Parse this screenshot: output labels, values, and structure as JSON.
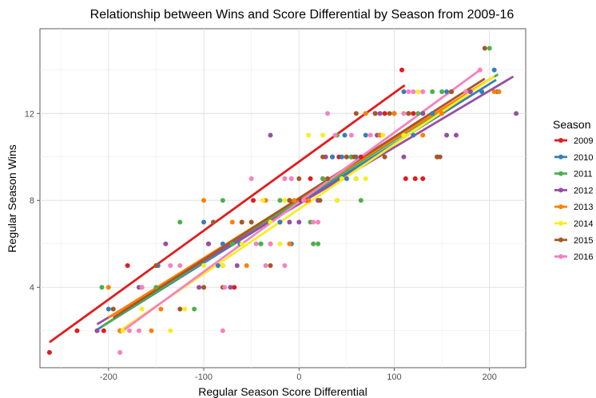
{
  "chart_data": {
    "type": "scatter",
    "title": "Relationship between Wins and Score Differential by Season from 2009-16",
    "xlabel": "Regular Season Score Differential",
    "ylabel": "Regular Season Wins",
    "xlim": [
      -272,
      238
    ],
    "ylim": [
      0.3,
      15.9
    ],
    "xticks": [
      -200,
      -100,
      0,
      100,
      200
    ],
    "xtick_labels": [
      "-200",
      "-100",
      "0",
      "100",
      "200"
    ],
    "yticks": [
      4,
      8,
      12
    ],
    "ytick_labels": [
      "4",
      "8",
      "12"
    ],
    "grid": true,
    "legend_title": "Season",
    "legend_position": "right",
    "series": [
      {
        "name": "2009",
        "color": "#E41A1C",
        "points": [
          [
            -262,
            1
          ],
          [
            -233,
            2
          ],
          [
            -205,
            2
          ],
          [
            -180,
            5
          ],
          [
            -165,
            4
          ],
          [
            -150,
            5
          ],
          [
            -95,
            6
          ],
          [
            -68,
            4
          ],
          [
            -48,
            8
          ],
          [
            -20,
            7
          ],
          [
            -10,
            8
          ],
          [
            2,
            8
          ],
          [
            8,
            8
          ],
          [
            12,
            9
          ],
          [
            25,
            9
          ],
          [
            35,
            10
          ],
          [
            42,
            10
          ],
          [
            55,
            10
          ],
          [
            65,
            10
          ],
          [
            85,
            11
          ],
          [
            90,
            12
          ],
          [
            100,
            12
          ],
          [
            108,
            14
          ],
          [
            112,
            9
          ],
          [
            120,
            12
          ],
          [
            122,
            9
          ],
          [
            130,
            9
          ],
          [
            145,
            10
          ],
          [
            160,
            13
          ]
        ],
        "fit": [
          [
            -262,
            1.47
          ],
          [
            111,
            13.3
          ]
        ]
      },
      {
        "name": "2010",
        "color": "#377EB8",
        "points": [
          [
            -212,
            2
          ],
          [
            -200,
            3
          ],
          [
            -148,
            5
          ],
          [
            -100,
            7
          ],
          [
            -85,
            5
          ],
          [
            -80,
            6
          ],
          [
            -62,
            6
          ],
          [
            -40,
            6
          ],
          [
            -20,
            7
          ],
          [
            -8,
            6
          ],
          [
            4,
            8
          ],
          [
            20,
            8
          ],
          [
            35,
            10
          ],
          [
            45,
            10
          ],
          [
            48,
            11
          ],
          [
            50,
            9
          ],
          [
            55,
            10
          ],
          [
            60,
            10
          ],
          [
            70,
            11
          ],
          [
            80,
            12
          ],
          [
            100,
            12
          ],
          [
            110,
            13
          ],
          [
            120,
            11
          ],
          [
            140,
            12
          ],
          [
            155,
            13
          ],
          [
            192,
            13
          ],
          [
            205,
            14
          ],
          [
            208,
            13
          ]
        ],
        "fit": [
          [
            -212,
            2.05
          ],
          [
            207,
            13.55
          ]
        ]
      },
      {
        "name": "2011",
        "color": "#4DAF4A",
        "points": [
          [
            -207,
            4
          ],
          [
            -150,
            4
          ],
          [
            -125,
            7
          ],
          [
            -110,
            3
          ],
          [
            -80,
            8
          ],
          [
            -70,
            6
          ],
          [
            -60,
            7
          ],
          [
            -40,
            6
          ],
          [
            -20,
            8
          ],
          [
            -15,
            9
          ],
          [
            -8,
            9
          ],
          [
            12,
            7
          ],
          [
            15,
            6
          ],
          [
            20,
            6
          ],
          [
            25,
            9
          ],
          [
            40,
            11
          ],
          [
            55,
            10
          ],
          [
            65,
            8
          ],
          [
            80,
            12
          ],
          [
            100,
            12
          ],
          [
            115,
            12
          ],
          [
            125,
            12
          ],
          [
            130,
            12
          ],
          [
            140,
            13
          ],
          [
            150,
            13
          ],
          [
            200,
            15
          ]
        ],
        "fit": [
          [
            -207,
            2.2
          ],
          [
            209,
            13.8
          ]
        ]
      },
      {
        "name": "2012",
        "color": "#984EA3",
        "points": [
          [
            -212,
            2
          ],
          [
            -188,
            2
          ],
          [
            -168,
            4
          ],
          [
            -140,
            6
          ],
          [
            -105,
            4
          ],
          [
            -95,
            6
          ],
          [
            -80,
            5
          ],
          [
            -72,
            4
          ],
          [
            -65,
            5
          ],
          [
            -30,
            11
          ],
          [
            -10,
            7
          ],
          [
            0,
            7
          ],
          [
            20,
            8
          ],
          [
            28,
            10
          ],
          [
            45,
            9
          ],
          [
            60,
            9
          ],
          [
            82,
            11
          ],
          [
            85,
            12
          ],
          [
            110,
            10
          ],
          [
            130,
            12
          ],
          [
            155,
            11
          ],
          [
            165,
            11
          ],
          [
            180,
            13
          ],
          [
            228,
            12
          ]
        ],
        "fit": [
          [
            -212,
            2.3
          ],
          [
            225,
            13.7
          ]
        ]
      },
      {
        "name": "2013",
        "color": "#FF7F00",
        "points": [
          [
            -200,
            4
          ],
          [
            -188,
            2
          ],
          [
            -155,
            2
          ],
          [
            -145,
            3
          ],
          [
            -100,
            8
          ],
          [
            -100,
            4
          ],
          [
            -70,
            7
          ],
          [
            -55,
            5
          ],
          [
            -35,
            8
          ],
          [
            -30,
            6
          ],
          [
            -10,
            6
          ],
          [
            -5,
            8
          ],
          [
            10,
            8
          ],
          [
            40,
            8
          ],
          [
            50,
            10
          ],
          [
            70,
            12
          ],
          [
            85,
            11
          ],
          [
            100,
            12
          ],
          [
            110,
            11
          ],
          [
            130,
            11
          ],
          [
            150,
            12
          ],
          [
            205,
            13
          ],
          [
            210,
            13
          ]
        ],
        "fit": [
          [
            -200,
            2.6
          ],
          [
            205,
            13.7
          ]
        ]
      },
      {
        "name": "2014",
        "color": "#F7EE20",
        "points": [
          [
            -185,
            2
          ],
          [
            -165,
            3
          ],
          [
            -135,
            2
          ],
          [
            -120,
            3
          ],
          [
            -100,
            5
          ],
          [
            -80,
            5
          ],
          [
            -60,
            6
          ],
          [
            -38,
            8
          ],
          [
            -30,
            7
          ],
          [
            -20,
            6
          ],
          [
            -15,
            8
          ],
          [
            5,
            8
          ],
          [
            10,
            11
          ],
          [
            25,
            11
          ],
          [
            40,
            8
          ],
          [
            45,
            9
          ],
          [
            60,
            9
          ],
          [
            70,
            9
          ],
          [
            88,
            11
          ],
          [
            110,
            11
          ],
          [
            125,
            13
          ]
        ],
        "fit": [
          [
            -188,
            2.0
          ],
          [
            205,
            13.7
          ]
        ]
      },
      {
        "name": "2015",
        "color": "#A65628",
        "points": [
          [
            -195,
            3
          ],
          [
            -150,
            5
          ],
          [
            -125,
            3
          ],
          [
            -100,
            4
          ],
          [
            -90,
            7
          ],
          [
            -80,
            4
          ],
          [
            -60,
            7
          ],
          [
            -50,
            7
          ],
          [
            -30,
            5
          ],
          [
            -10,
            8
          ],
          [
            0,
            9
          ],
          [
            22,
            8
          ],
          [
            25,
            10
          ],
          [
            30,
            9
          ],
          [
            50,
            10
          ],
          [
            58,
            10
          ],
          [
            60,
            12
          ],
          [
            80,
            12
          ],
          [
            90,
            10
          ],
          [
            95,
            12
          ],
          [
            115,
            12
          ],
          [
            145,
            10
          ],
          [
            148,
            10
          ],
          [
            160,
            13
          ],
          [
            195,
            15
          ]
        ],
        "fit": [
          [
            -195,
            2.6
          ],
          [
            195,
            13.6
          ]
        ]
      },
      {
        "name": "2016",
        "color": "#F781BF",
        "points": [
          [
            -188,
            1
          ],
          [
            -178,
            2
          ],
          [
            -168,
            2
          ],
          [
            -165,
            4
          ],
          [
            -135,
            5
          ],
          [
            -125,
            5
          ],
          [
            -80,
            2
          ],
          [
            -78,
            4
          ],
          [
            -50,
            9
          ],
          [
            -45,
            6
          ],
          [
            -35,
            5
          ],
          [
            -30,
            6
          ],
          [
            -15,
            5
          ],
          [
            -15,
            9
          ],
          [
            -8,
            9
          ],
          [
            5,
            8
          ],
          [
            15,
            7
          ],
          [
            20,
            7
          ],
          [
            30,
            12
          ],
          [
            38,
            11
          ],
          [
            55,
            11
          ],
          [
            75,
            11
          ],
          [
            110,
            12
          ],
          [
            115,
            13
          ],
          [
            120,
            13
          ],
          [
            130,
            13
          ],
          [
            175,
            13
          ],
          [
            190,
            14
          ]
        ],
        "fit": [
          [
            -188,
            1.9
          ],
          [
            190,
            14.0
          ]
        ]
      }
    ]
  }
}
